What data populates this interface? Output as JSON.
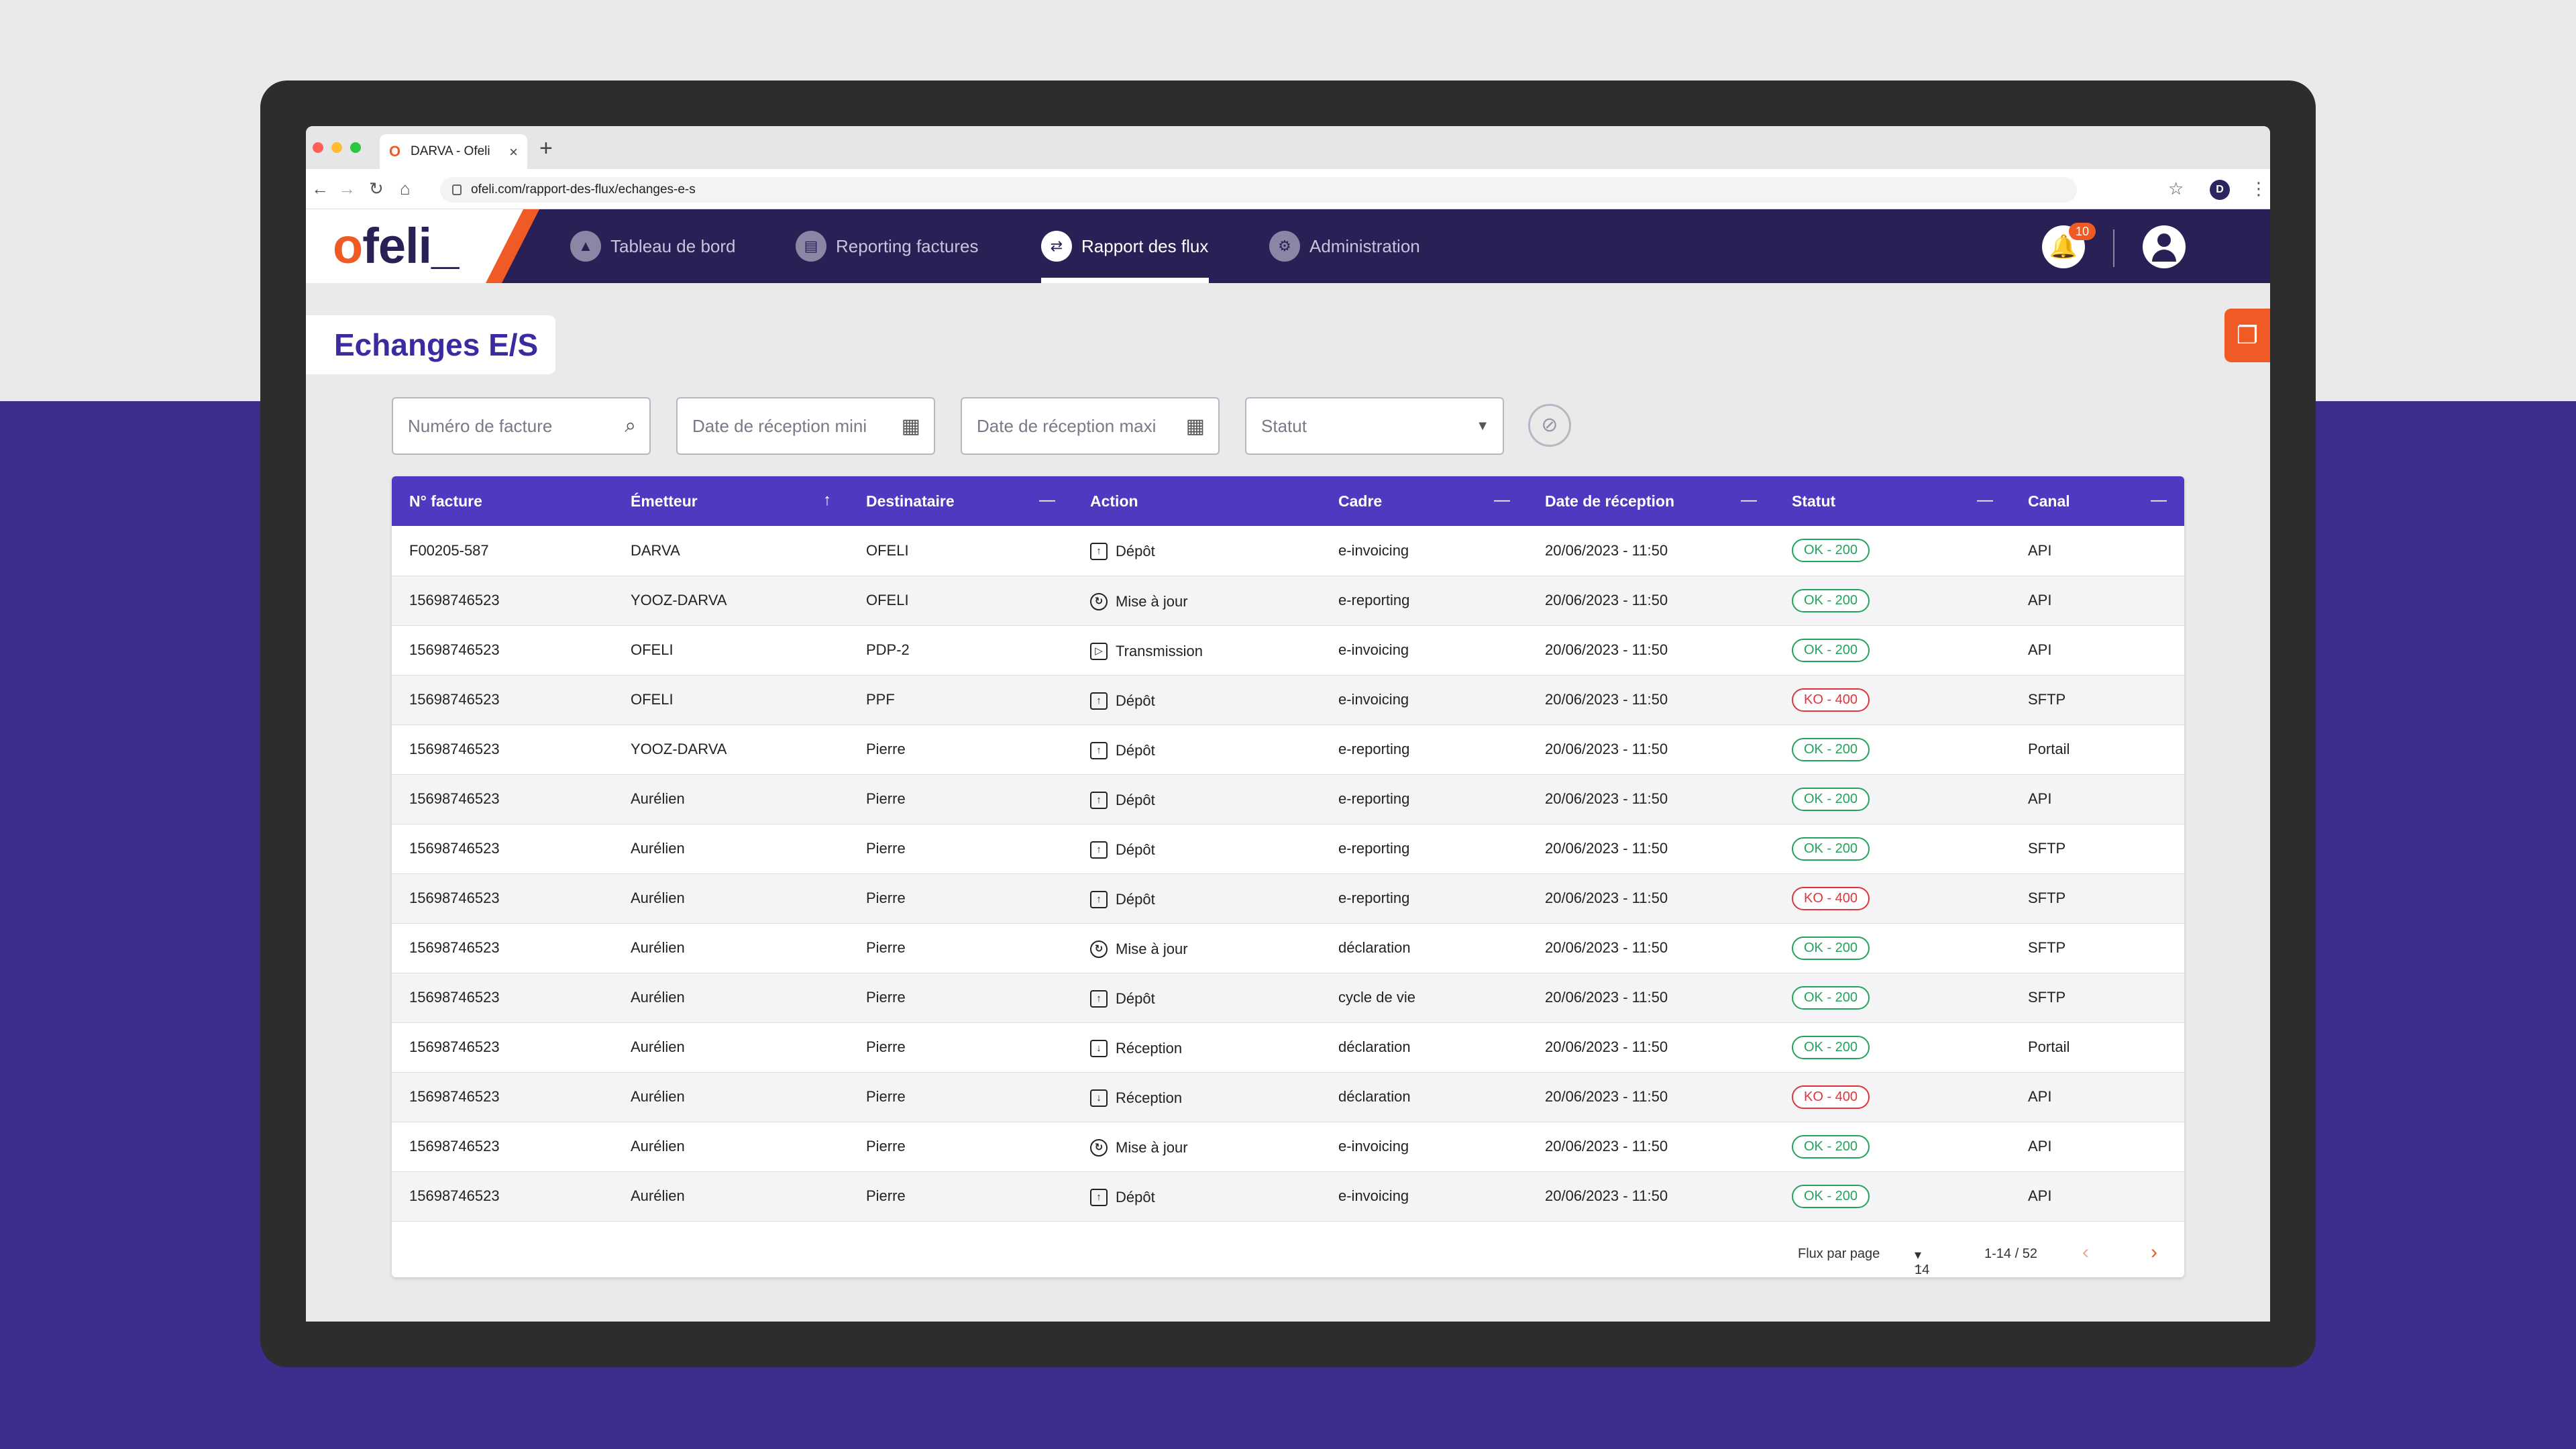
{
  "browser": {
    "tab_title": "DARVA - Ofeli",
    "tab_favicon": "O",
    "url": "ofeli.com/rapport-des-flux/echanges-e-s",
    "profile_initial": "D"
  },
  "app": {
    "logo_o": "o",
    "logo_rest": "feli_",
    "nav": [
      {
        "label": "Tableau de bord",
        "icon": "chart-icon"
      },
      {
        "label": "Reporting factures",
        "icon": "invoice-icon"
      },
      {
        "label": "Rapport des flux",
        "icon": "swap-icon",
        "active": true
      },
      {
        "label": "Administration",
        "icon": "user-gear-icon"
      }
    ],
    "notifications_count": "10"
  },
  "page": {
    "title": "Echanges E/S"
  },
  "filters": {
    "invoice_number_placeholder": "Numéro de facture",
    "date_min_placeholder": "Date de réception mini",
    "date_max_placeholder": "Date de réception maxi",
    "status_placeholder": "Statut"
  },
  "table": {
    "headers": [
      "N° facture",
      "Émetteur",
      "Destinataire",
      "Action",
      "Cadre",
      "Date de réception",
      "Statut",
      "Canal"
    ],
    "rows": [
      {
        "num": "F00205-587",
        "emetteur": "DARVA",
        "destinataire": "OFELI",
        "action": "Dépôt",
        "cadre": "e-invoicing",
        "date": "20/06/2023 - 11:50",
        "statut": "OK - 200",
        "canal": "API"
      },
      {
        "num": "15698746523",
        "emetteur": "YOOZ-DARVA",
        "destinataire": "OFELI",
        "action": "Mise à jour",
        "cadre": "e-reporting",
        "date": "20/06/2023 - 11:50",
        "statut": "OK - 200",
        "canal": "API"
      },
      {
        "num": "15698746523",
        "emetteur": "OFELI",
        "destinataire": "PDP-2",
        "action": "Transmission",
        "cadre": "e-invoicing",
        "date": "20/06/2023 - 11:50",
        "statut": "OK - 200",
        "canal": "API"
      },
      {
        "num": "15698746523",
        "emetteur": "OFELI",
        "destinataire": "PPF",
        "action": "Dépôt",
        "cadre": "e-invoicing",
        "date": "20/06/2023 - 11:50",
        "statut": "KO - 400",
        "canal": "SFTP"
      },
      {
        "num": "15698746523",
        "emetteur": "YOOZ-DARVA",
        "destinataire": "Pierre",
        "action": "Dépôt",
        "cadre": "e-reporting",
        "date": "20/06/2023 - 11:50",
        "statut": "OK - 200",
        "canal": "Portail"
      },
      {
        "num": "15698746523",
        "emetteur": "Aurélien",
        "destinataire": "Pierre",
        "action": "Dépôt",
        "cadre": "e-reporting",
        "date": "20/06/2023 - 11:50",
        "statut": "OK - 200",
        "canal": "API"
      },
      {
        "num": "15698746523",
        "emetteur": "Aurélien",
        "destinataire": "Pierre",
        "action": "Dépôt",
        "cadre": "e-reporting",
        "date": "20/06/2023 - 11:50",
        "statut": "OK - 200",
        "canal": "SFTP"
      },
      {
        "num": "15698746523",
        "emetteur": "Aurélien",
        "destinataire": "Pierre",
        "action": "Dépôt",
        "cadre": "e-reporting",
        "date": "20/06/2023 - 11:50",
        "statut": "KO - 400",
        "canal": "SFTP"
      },
      {
        "num": "15698746523",
        "emetteur": "Aurélien",
        "destinataire": "Pierre",
        "action": "Mise à jour",
        "cadre": "déclaration",
        "date": "20/06/2023 - 11:50",
        "statut": "OK - 200",
        "canal": "SFTP"
      },
      {
        "num": "15698746523",
        "emetteur": "Aurélien",
        "destinataire": "Pierre",
        "action": "Dépôt",
        "cadre": "cycle de vie",
        "date": "20/06/2023 - 11:50",
        "statut": "OK - 200",
        "canal": "SFTP"
      },
      {
        "num": "15698746523",
        "emetteur": "Aurélien",
        "destinataire": "Pierre",
        "action": "Réception",
        "cadre": "déclaration",
        "date": "20/06/2023 - 11:50",
        "statut": "OK - 200",
        "canal": "Portail"
      },
      {
        "num": "15698746523",
        "emetteur": "Aurélien",
        "destinataire": "Pierre",
        "action": "Réception",
        "cadre": "déclaration",
        "date": "20/06/2023 - 11:50",
        "statut": "KO - 400",
        "canal": "API"
      },
      {
        "num": "15698746523",
        "emetteur": "Aurélien",
        "destinataire": "Pierre",
        "action": "Mise à jour",
        "cadre": "e-invoicing",
        "date": "20/06/2023 - 11:50",
        "statut": "OK - 200",
        "canal": "API"
      },
      {
        "num": "15698746523",
        "emetteur": "Aurélien",
        "destinataire": "Pierre",
        "action": "Dépôt",
        "cadre": "e-invoicing",
        "date": "20/06/2023 - 11:50",
        "statut": "OK - 200",
        "canal": "API"
      }
    ]
  },
  "pagination": {
    "per_page_label": "Flux par page",
    "per_page_value": "14",
    "range": "1-14 / 52"
  },
  "colors": {
    "brand_primary": "#2b2055",
    "brand_accent": "#ef5a25",
    "table_header": "#4d3ac0",
    "status_ok": "#22a35c",
    "status_ko": "#e0343a"
  }
}
